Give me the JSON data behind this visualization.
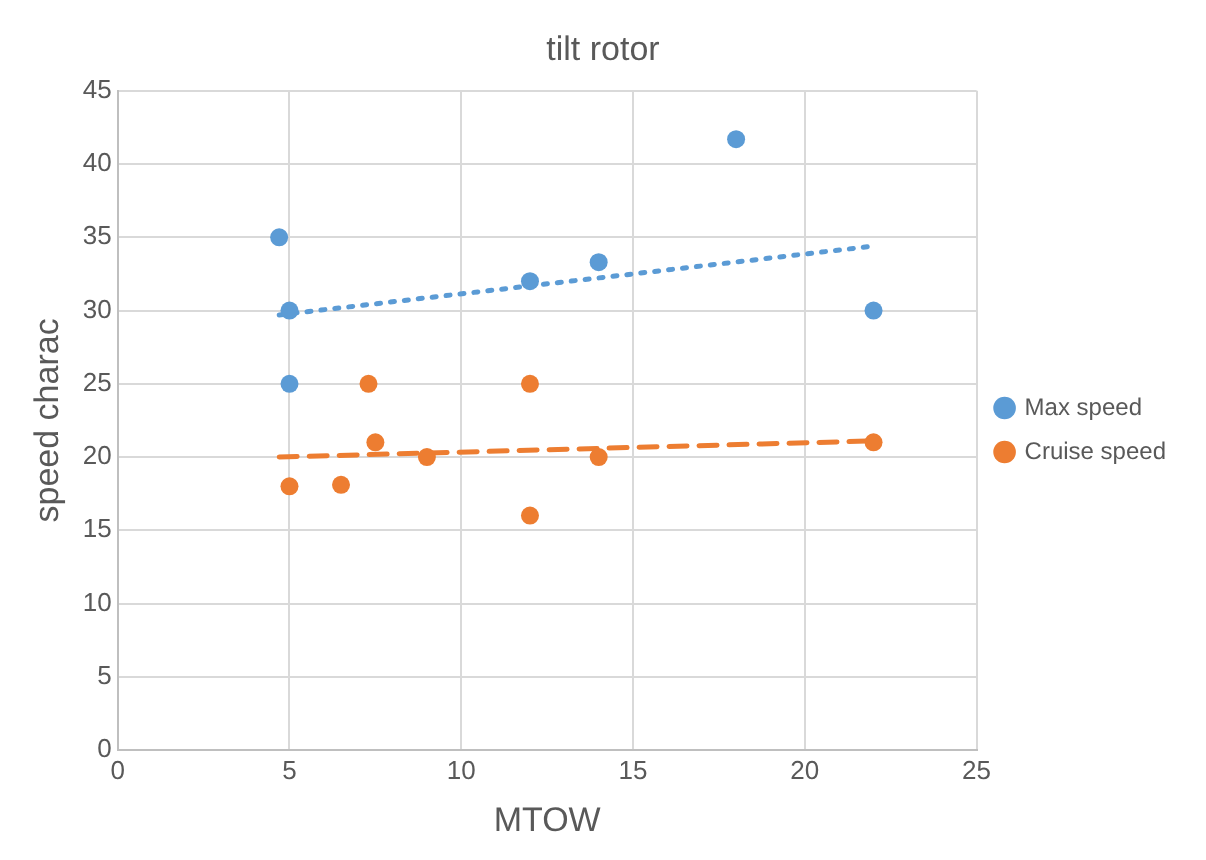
{
  "chart_data": {
    "type": "scatter",
    "title": "tilt rotor",
    "xlabel": "MTOW",
    "ylabel": "speed charac",
    "xlim": [
      0,
      25
    ],
    "xticks": [
      0,
      5,
      10,
      15,
      20,
      25
    ],
    "ylim": [
      0,
      45
    ],
    "yticks": [
      0,
      5,
      10,
      15,
      20,
      25,
      30,
      35,
      40,
      45
    ],
    "grid": true,
    "legend": "right",
    "marker": "circle",
    "series": [
      {
        "name": "Max speed",
        "color": "#5b9bd5",
        "x": [
          4.7,
          5,
          5,
          12,
          14,
          18,
          22
        ],
        "values": [
          35,
          30,
          25,
          32,
          33.3,
          41.7,
          30
        ]
      },
      {
        "name": "Cruise speed",
        "color": "#ed7d31",
        "x": [
          5,
          6.5,
          7.3,
          7.5,
          9,
          12,
          12,
          14,
          22
        ],
        "values": [
          18,
          18.1,
          25,
          21,
          20,
          25,
          16,
          20,
          21
        ]
      },
      {
        "type": "line",
        "color": "#5b9bd5",
        "line_style": "dotted",
        "marker": "none",
        "x": [
          4.7,
          22
        ],
        "values": [
          29.7,
          34.4
        ]
      },
      {
        "type": "line",
        "color": "#ed7d31",
        "line_style": "dashed",
        "marker": "none",
        "x": [
          4.7,
          22
        ],
        "values": [
          20.0,
          21.1
        ]
      }
    ]
  }
}
